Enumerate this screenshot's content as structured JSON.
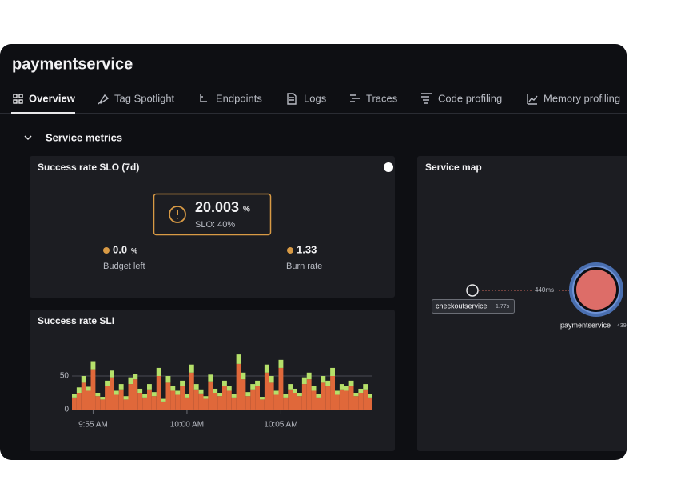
{
  "header": {
    "title": "paymentservice"
  },
  "tabs": [
    "Overview",
    "Tag Spotlight",
    "Endpoints",
    "Logs",
    "Traces",
    "Code profiling",
    "Memory profiling"
  ],
  "section": {
    "title": "Service metrics"
  },
  "slo_card": {
    "title": "Success rate SLO (7d)",
    "value": "20.003",
    "unit": "%",
    "slo_label": "SLO: 40%",
    "budget_value": "0.0",
    "budget_unit": "%",
    "budget_label": "Budget left",
    "burn_value": "1.33",
    "burn_label": "Burn rate"
  },
  "service_map": {
    "title": "Service map",
    "nodes": [
      {
        "label": "checkoutservice",
        "latency": "1.77s"
      },
      {
        "label": "paymentservice",
        "latency": "439"
      }
    ],
    "edges": [
      {
        "label": "440ms"
      }
    ]
  },
  "chart_data": {
    "type": "bar",
    "stacked": true,
    "title": "Success rate SLI",
    "categories": [
      null,
      null,
      null,
      null,
      "9:55 AM",
      null,
      null,
      null,
      null,
      null,
      null,
      null,
      null,
      null,
      null,
      null,
      null,
      null,
      null,
      null,
      null,
      null,
      null,
      null,
      "10:00 AM",
      null,
      null,
      null,
      null,
      null,
      null,
      null,
      null,
      null,
      null,
      null,
      null,
      null,
      null,
      null,
      null,
      null,
      null,
      null,
      "10:05 AM",
      null,
      null,
      null,
      null,
      null,
      null,
      null,
      null,
      null,
      null,
      null,
      null,
      null,
      null,
      null,
      null,
      null,
      null,
      null
    ],
    "series": [
      {
        "color": "#e0683a",
        "values": [
          18,
          25,
          40,
          28,
          60,
          20,
          15,
          35,
          48,
          22,
          30,
          15,
          38,
          45,
          25,
          18,
          30,
          20,
          50,
          12,
          40,
          28,
          22,
          35,
          18,
          55,
          30,
          24,
          16,
          42,
          25,
          20,
          35,
          28,
          18,
          68,
          45,
          20,
          30,
          35,
          15,
          55,
          40,
          22,
          62,
          18,
          30,
          25,
          20,
          38,
          45,
          28,
          18,
          40,
          35,
          50,
          22,
          30,
          28,
          35,
          20,
          25,
          30,
          18
        ]
      },
      {
        "color": "#b5e06a",
        "values": [
          5,
          8,
          10,
          6,
          12,
          5,
          4,
          8,
          10,
          6,
          8,
          5,
          10,
          8,
          6,
          5,
          8,
          6,
          12,
          4,
          10,
          7,
          6,
          8,
          5,
          12,
          8,
          6,
          4,
          10,
          6,
          5,
          8,
          7,
          5,
          14,
          10,
          6,
          8,
          8,
          4,
          12,
          10,
          6,
          12,
          5,
          8,
          6,
          5,
          10,
          10,
          7,
          5,
          10,
          8,
          12,
          6,
          8,
          7,
          8,
          5,
          6,
          8,
          5
        ]
      }
    ],
    "ylim": [
      0,
      85
    ],
    "yticks": [
      0,
      50
    ],
    "grid": true
  }
}
